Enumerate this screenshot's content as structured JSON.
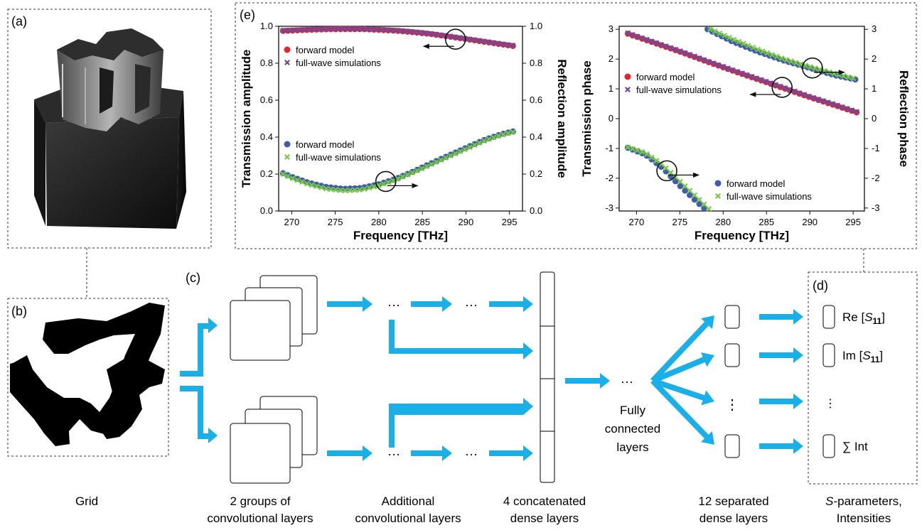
{
  "panel_labels": {
    "a": "(a)",
    "b": "(b)",
    "c": "(c)",
    "d": "(d)",
    "e": "(e)"
  },
  "captions": {
    "grid": "Grid",
    "conv1": "2 groups of",
    "conv2": "convolutional layers",
    "add1": "Additional",
    "add2": "convolutional layers",
    "dense1": "4 concatenated",
    "dense2": "dense layers",
    "sep1": "12 separated",
    "sep2": "dense layers",
    "sp1": "-parameters,",
    "sp1_S": "S",
    "sp2": "Intensities"
  },
  "ellipsis": "···",
  "vdots": "⋮",
  "fc_label": [
    "Fully",
    "connected",
    "layers"
  ],
  "outputs": {
    "re_pre": "Re [",
    "re_S": "S",
    "re_sub": "11",
    "re_post": "]",
    "im_pre": "Im [",
    "im_S": "S",
    "im_sub": "11",
    "im_post": "]",
    "int": "∑ Int"
  },
  "colors": {
    "arrow": "#1aafe6",
    "red": "#e3262e",
    "blue": "#3f5dab",
    "green": "#7ac943",
    "purple": "#6e4a9e"
  },
  "chart_data": [
    {
      "type": "scatter",
      "xlabel": "Frequency [THz]",
      "ylabel": "Transmission amplitude",
      "ylabel_right": "Reflection amplitude",
      "xlim": [
        268.5,
        296.5
      ],
      "ylim": [
        0,
        1
      ],
      "xticks": [
        270,
        275,
        280,
        285,
        290,
        295
      ],
      "yticks": [
        0.0,
        0.2,
        0.4,
        0.6,
        0.8,
        1.0
      ],
      "ytick_labels": [
        "0.0",
        "0.2",
        "0.4",
        "0.6",
        "0.8",
        "1.0"
      ],
      "legend_top": {
        "forward": "forward model",
        "full": "full-wave simulations"
      },
      "legend_bottom": {
        "forward": "forward model",
        "full": "full-wave simulations"
      },
      "series": [
        {
          "name": "forward model",
          "group": "transmission",
          "x": [
            269,
            270,
            272,
            274,
            276,
            278,
            280,
            282,
            284,
            286,
            288,
            290,
            292,
            294,
            295.5
          ],
          "y": [
            0.975,
            0.977,
            0.981,
            0.984,
            0.985,
            0.985,
            0.981,
            0.976,
            0.968,
            0.958,
            0.945,
            0.931,
            0.917,
            0.903,
            0.893
          ]
        },
        {
          "name": "full-wave simulations",
          "group": "transmission",
          "x": [
            269,
            270,
            272,
            274,
            276,
            278,
            280,
            282,
            284,
            286,
            288,
            290,
            292,
            294,
            295.5
          ],
          "y": [
            0.977,
            0.979,
            0.983,
            0.986,
            0.987,
            0.986,
            0.983,
            0.978,
            0.97,
            0.96,
            0.947,
            0.933,
            0.919,
            0.905,
            0.895
          ]
        },
        {
          "name": "forward model",
          "group": "reflection",
          "x": [
            269,
            270,
            272,
            274,
            276,
            278,
            280,
            282,
            284,
            286,
            288,
            290,
            292,
            294,
            295.5
          ],
          "y": [
            0.205,
            0.185,
            0.152,
            0.13,
            0.12,
            0.125,
            0.145,
            0.175,
            0.215,
            0.258,
            0.3,
            0.342,
            0.383,
            0.415,
            0.432
          ]
        },
        {
          "name": "full-wave simulations",
          "group": "reflection",
          "x": [
            269,
            270,
            272,
            274,
            276,
            278,
            280,
            282,
            284,
            286,
            288,
            290,
            292,
            294,
            295.5
          ],
          "y": [
            0.2,
            0.178,
            0.144,
            0.12,
            0.11,
            0.115,
            0.138,
            0.17,
            0.21,
            0.252,
            0.294,
            0.336,
            0.378,
            0.411,
            0.428
          ]
        }
      ],
      "annotations": [
        {
          "circle_x": 288.8,
          "circle_y": 0.93,
          "arrow": "left"
        },
        {
          "circle_x": 280.8,
          "circle_y": 0.16,
          "arrow": "right"
        }
      ]
    },
    {
      "type": "scatter",
      "xlabel": "Frequency [THz]",
      "ylabel": "Transmission phase",
      "ylabel_right": "Reflection phase",
      "xlim": [
        268,
        296.3
      ],
      "ylim": [
        -3.1,
        3.1
      ],
      "xticks": [
        270,
        275,
        280,
        285,
        290,
        295
      ],
      "yticks": [
        -3,
        -2,
        -1,
        0,
        1,
        2,
        3
      ],
      "ytick_labels": [
        "-3",
        "-2",
        "-1",
        "0",
        "1",
        "2",
        "3"
      ],
      "legend_top": {
        "forward": "forward model",
        "full": "full-wave simulations"
      },
      "legend_bottom": {
        "forward": "forward model",
        "full": "full-wave simulations"
      },
      "series": [
        {
          "name": "forward model",
          "group": "transmission",
          "x": [
            269,
            272,
            275,
            278,
            281,
            284,
            287,
            290,
            293,
            295.5
          ],
          "y": [
            2.85,
            2.55,
            2.25,
            1.93,
            1.62,
            1.32,
            1.02,
            0.72,
            0.44,
            0.2
          ]
        },
        {
          "name": "full-wave simulations",
          "group": "transmission",
          "x": [
            269,
            272,
            275,
            278,
            281,
            284,
            287,
            290,
            293,
            295.5
          ],
          "y": [
            2.87,
            2.57,
            2.27,
            1.95,
            1.64,
            1.34,
            1.04,
            0.74,
            0.46,
            0.22
          ]
        },
        {
          "name": "forward model",
          "group": "reflection_upper",
          "x": [
            278.2,
            281,
            284,
            287,
            290,
            293,
            295.5
          ],
          "y": [
            3.0,
            2.6,
            2.25,
            1.95,
            1.7,
            1.45,
            1.3
          ]
        },
        {
          "name": "full-wave simulations",
          "group": "reflection_upper",
          "x": [
            278.5,
            281,
            284,
            287,
            290,
            293,
            295.5
          ],
          "y": [
            3.0,
            2.68,
            2.32,
            2.0,
            1.74,
            1.5,
            1.32
          ]
        },
        {
          "name": "forward model",
          "group": "reflection_lower",
          "x": [
            269,
            271,
            273,
            275,
            277,
            278.2
          ],
          "y": [
            -0.98,
            -1.2,
            -1.65,
            -2.25,
            -2.8,
            -3.1
          ]
        },
        {
          "name": "full-wave simulations",
          "group": "reflection_lower",
          "x": [
            269,
            271,
            273,
            275,
            277,
            278.6
          ],
          "y": [
            -0.96,
            -1.15,
            -1.55,
            -2.1,
            -2.65,
            -3.1
          ]
        }
      ],
      "annotations": [
        {
          "circle_x": 290.3,
          "circle_y": 1.7,
          "arrow": "right"
        },
        {
          "circle_x": 286.8,
          "circle_y": 1.05,
          "arrow": "left"
        },
        {
          "circle_x": 273.5,
          "circle_y": -1.75,
          "arrow": "right"
        }
      ]
    }
  ]
}
